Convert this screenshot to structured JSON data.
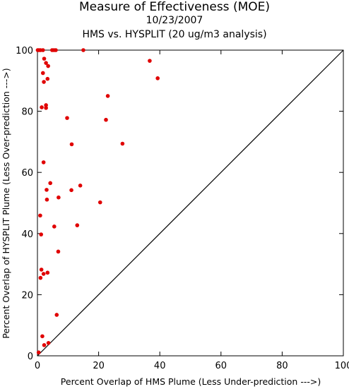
{
  "chart_data": {
    "type": "scatter",
    "title": "Measure of Effectiveness (MOE)",
    "subtitle_date": "10/23/2007",
    "subtitle_analysis": "HMS vs. HYSPLIT  (20 ug/m3 analysis)",
    "xlabel": "Percent Overlap of HMS Plume (Less Under-prediction --->)",
    "ylabel": "Percent Overlap of HYSPLIT Plume (Less Over-prediction --->)",
    "xlim": [
      0,
      100
    ],
    "ylim": [
      0,
      100
    ],
    "xticks": [
      0,
      20,
      40,
      60,
      80,
      100
    ],
    "yticks": [
      0,
      20,
      40,
      60,
      80,
      100
    ],
    "xtick_labels": [
      "0",
      "20",
      "40",
      "60",
      "80",
      "100"
    ],
    "ytick_labels": [
      "0",
      "20",
      "40",
      "60",
      "80",
      "100"
    ],
    "reference_line": "1:1 diagonal",
    "grid": false,
    "marker_color": "#e00000",
    "points": [
      {
        "x": 0.1,
        "y": 100
      },
      {
        "x": 0.5,
        "y": 100
      },
      {
        "x": 1.0,
        "y": 100
      },
      {
        "x": 1.8,
        "y": 100
      },
      {
        "x": 4.8,
        "y": 100
      },
      {
        "x": 5.4,
        "y": 100
      },
      {
        "x": 6.0,
        "y": 100
      },
      {
        "x": 15.0,
        "y": 100
      },
      {
        "x": 2.2,
        "y": 97.2
      },
      {
        "x": 2.8,
        "y": 95.8
      },
      {
        "x": 3.5,
        "y": 94.8
      },
      {
        "x": 1.8,
        "y": 92.5
      },
      {
        "x": 3.3,
        "y": 90.6
      },
      {
        "x": 2.1,
        "y": 89.6
      },
      {
        "x": 36.7,
        "y": 96.5
      },
      {
        "x": 39.3,
        "y": 90.8
      },
      {
        "x": 23.0,
        "y": 85.0
      },
      {
        "x": 2.8,
        "y": 82.0
      },
      {
        "x": 1.4,
        "y": 81.3
      },
      {
        "x": 2.8,
        "y": 81.1
      },
      {
        "x": 9.7,
        "y": 77.8
      },
      {
        "x": 22.4,
        "y": 77.2
      },
      {
        "x": 11.2,
        "y": 69.2
      },
      {
        "x": 27.8,
        "y": 69.4
      },
      {
        "x": 2.0,
        "y": 63.3
      },
      {
        "x": 4.2,
        "y": 56.5
      },
      {
        "x": 14.0,
        "y": 55.7
      },
      {
        "x": 3.0,
        "y": 54.3
      },
      {
        "x": 11.1,
        "y": 54.2
      },
      {
        "x": 6.9,
        "y": 51.8
      },
      {
        "x": 3.1,
        "y": 51.1
      },
      {
        "x": 20.5,
        "y": 50.2
      },
      {
        "x": 0.9,
        "y": 45.9
      },
      {
        "x": 13.0,
        "y": 42.7
      },
      {
        "x": 5.5,
        "y": 42.3
      },
      {
        "x": 1.2,
        "y": 39.7
      },
      {
        "x": 6.8,
        "y": 34.1
      },
      {
        "x": 1.3,
        "y": 28.2
      },
      {
        "x": 2.0,
        "y": 26.8
      },
      {
        "x": 3.3,
        "y": 27.2
      },
      {
        "x": 1.0,
        "y": 25.5
      },
      {
        "x": 6.3,
        "y": 13.4
      },
      {
        "x": 1.6,
        "y": 6.4
      },
      {
        "x": 3.6,
        "y": 4.2
      },
      {
        "x": 2.2,
        "y": 3.5
      },
      {
        "x": 0.4,
        "y": 1.1
      }
    ]
  }
}
